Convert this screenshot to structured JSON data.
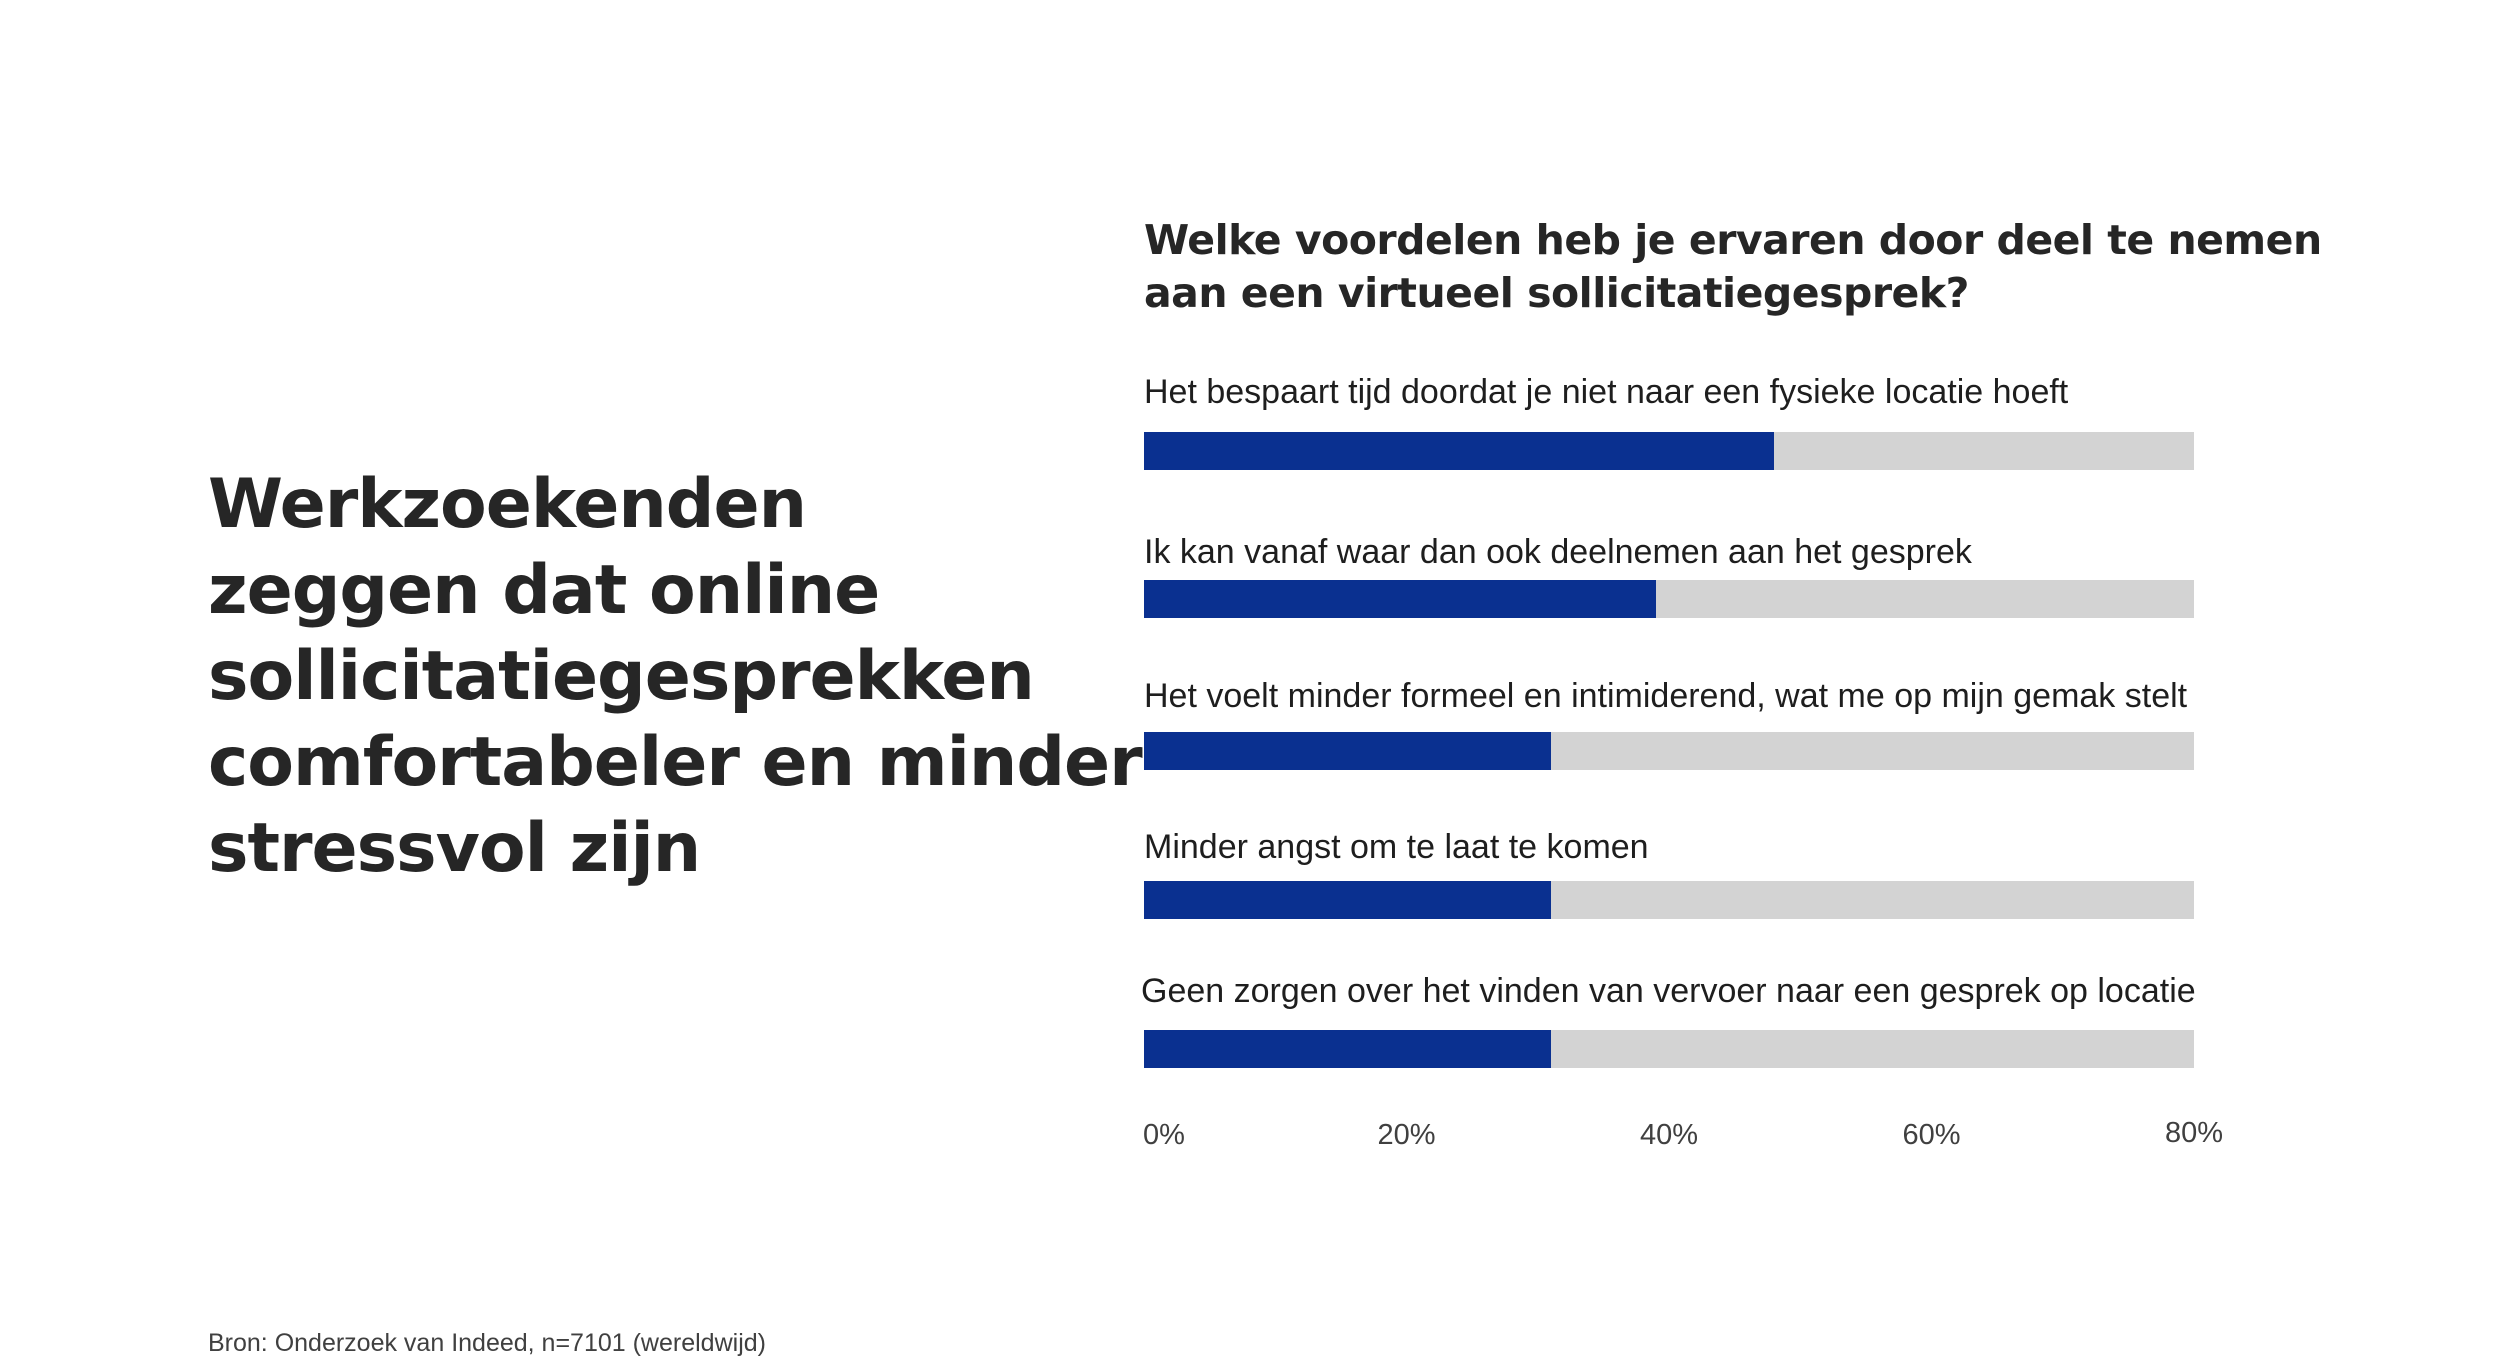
{
  "headline": {
    "lines": [
      "Werkzoekenden",
      "zeggen dat online",
      "sollicitatiegesprekken",
      "comfortabeler en minder",
      "stressvol zijn"
    ]
  },
  "source": "Bron: Onderzoek van Indeed, n=7101 (wereldwijd)",
  "chart_data": {
    "type": "bar",
    "orientation": "horizontal",
    "title_lines": [
      "Welke voordelen heb je ervaren door deel te nemen",
      "aan een virtueel sollicitatiegesprek?"
    ],
    "categories": [
      "Het bespaart tijd doordat je niet naar een fysieke locatie hoeft",
      "Ik kan vanaf waar dan ook deelnemen aan het gesprek",
      "Het voelt minder formeel en intimiderend, wat me op mijn gemak stelt",
      "Minder angst om te laat te komen",
      "Geen zorgen over het vinden van vervoer naar een gesprek op locatie"
    ],
    "values": [
      48,
      39,
      31,
      31,
      31
    ],
    "unit": "%",
    "xlim": [
      0,
      80
    ],
    "ticks": [
      "0%",
      "20%",
      "40%",
      "60%",
      "80%"
    ],
    "grid": false,
    "legend": "none",
    "colors": {
      "bar": "#0a3090",
      "track": "#d3d3d3"
    }
  }
}
